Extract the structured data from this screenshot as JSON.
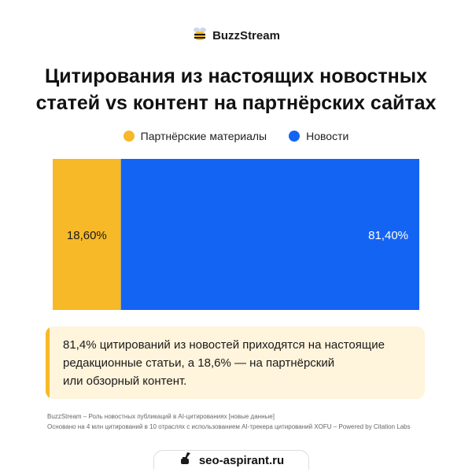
{
  "brand": {
    "name": "BuzzStream",
    "logo_icon": "bee-icon"
  },
  "title_line1": "Цитирования из настоящих новостных",
  "title_line2": "статей vs контент на партнёрских сайтах",
  "colors": {
    "partner": "#f7b928",
    "news": "#1464f4",
    "callout_bg": "#fff4dc"
  },
  "chart_data": {
    "type": "bar",
    "orientation": "horizontal-stacked",
    "series": [
      {
        "name": "Партнёрские материалы",
        "values": [
          18.6
        ],
        "label": "18,60%",
        "color": "#f7b928"
      },
      {
        "name": "Новости",
        "values": [
          81.4
        ],
        "label": "81,40%",
        "color": "#1464f4"
      }
    ],
    "total": 100,
    "legend": "top-center",
    "grid": false
  },
  "callout": {
    "line1": "81,4% цитирований из новостей приходятся на настоящие",
    "line2": "редакционные статьи, а 18,6% — на партнёрский",
    "line3": "или обзорный контент."
  },
  "source": {
    "line1": "BuzzStream – Роль новостных публикаций в AI-цитированиях [новые данные]",
    "line2": "Основано на 4 млн цитирований в 10 отраслях с использованием AI-трекера цитирований XOFU – Powered by Citation Labs"
  },
  "footer": {
    "site": "seo-aspirant.ru",
    "icon": "inkwell-icon"
  }
}
